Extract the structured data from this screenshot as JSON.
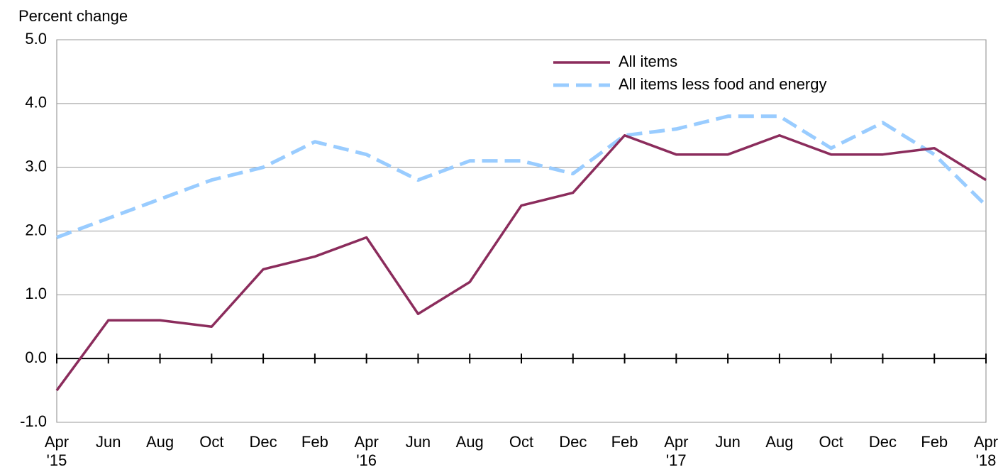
{
  "chart_data": {
    "type": "line",
    "y_axis_label": "Percent change",
    "categories": [
      "Apr\n'15",
      "Jun",
      "Aug",
      "Oct",
      "Dec",
      "Feb",
      "Apr\n'16",
      "Jun",
      "Aug",
      "Oct",
      "Dec",
      "Feb",
      "Apr\n'17",
      "Jun",
      "Aug",
      "Oct",
      "Dec",
      "Feb",
      "Apr\n'18"
    ],
    "series": [
      {
        "name": "All items",
        "color": "#8b2c5c",
        "dashed": false,
        "values": [
          -0.5,
          0.6,
          0.6,
          0.5,
          1.4,
          1.6,
          1.9,
          0.7,
          1.2,
          2.4,
          2.6,
          3.5,
          3.2,
          3.2,
          3.5,
          3.2,
          3.2,
          3.3,
          2.8
        ]
      },
      {
        "name": "All items less food and energy",
        "color": "#99ccff",
        "dashed": true,
        "values": [
          1.9,
          2.2,
          2.5,
          2.8,
          3.0,
          3.4,
          3.2,
          2.8,
          3.1,
          3.1,
          2.9,
          3.5,
          3.6,
          3.8,
          3.8,
          3.3,
          3.7,
          3.2,
          2.4
        ]
      }
    ],
    "ylim": [
      -1,
      5
    ],
    "yticks": [
      {
        "value": -1,
        "label": "-1.0"
      },
      {
        "value": 0,
        "label": "0.0"
      },
      {
        "value": 1,
        "label": "1.0"
      },
      {
        "value": 2,
        "label": "2.0"
      },
      {
        "value": 3,
        "label": "3.0"
      },
      {
        "value": 4,
        "label": "4.0"
      },
      {
        "value": 5,
        "label": "5.0"
      }
    ],
    "grid": true,
    "legend": "top-right"
  }
}
